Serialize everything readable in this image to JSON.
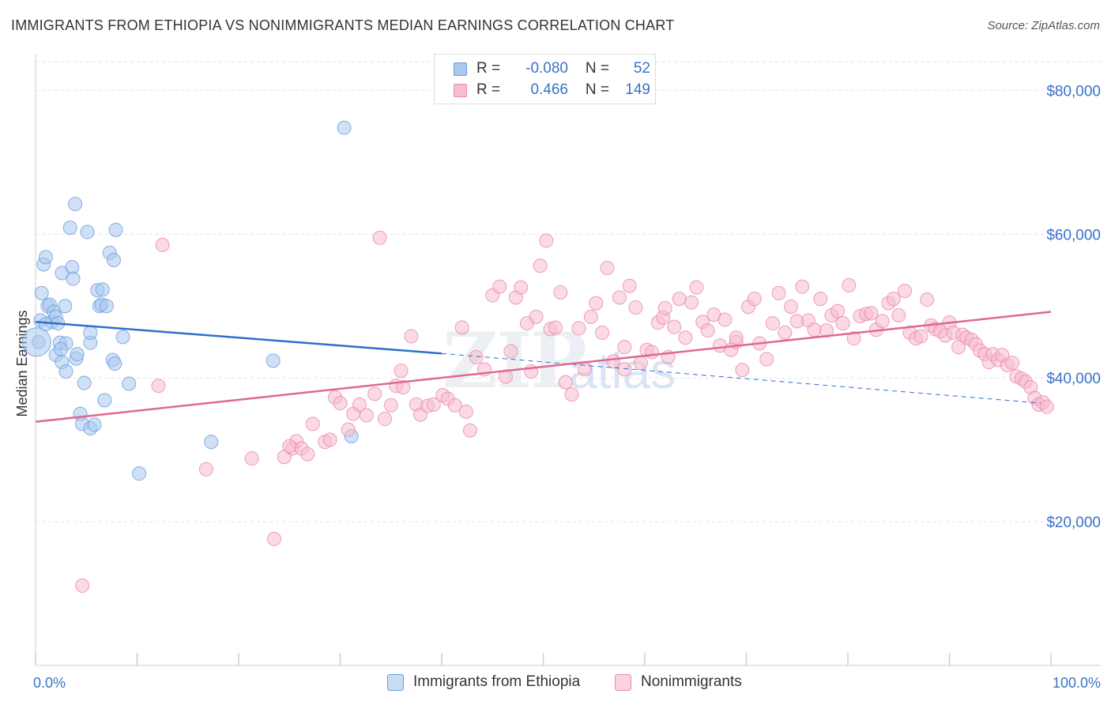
{
  "header": {
    "title": "IMMIGRANTS FROM ETHIOPIA VS NONIMMIGRANTS MEDIAN EARNINGS CORRELATION CHART",
    "source": "Source: ZipAtlas.com"
  },
  "watermark": {
    "part1": "ZIP",
    "part2": "atlas"
  },
  "legend": {
    "rows": [
      {
        "r_label": "R =",
        "r_value": "-0.080",
        "n_label": "N =",
        "n_value": "52",
        "color": "#aac8f0",
        "stroke": "#6b9bd8"
      },
      {
        "r_label": "R =",
        "r_value": "0.466",
        "n_label": "N =",
        "n_value": "149",
        "color": "#f8bcd0",
        "stroke": "#e88aa8"
      }
    ]
  },
  "bottom_legend": {
    "items": [
      {
        "label": "Immigrants from Ethiopia",
        "color": "#c8dcf6",
        "stroke": "#6b9bd8"
      },
      {
        "label": "Nonimmigrants",
        "color": "#fbd3e0",
        "stroke": "#e88aa8"
      }
    ]
  },
  "chart_data": {
    "type": "scatter",
    "title": "IMMIGRANTS FROM ETHIOPIA VS NONIMMIGRANTS MEDIAN EARNINGS CORRELATION CHART",
    "xlabel": "",
    "ylabel": "Median Earnings",
    "xlim": [
      0,
      100
    ],
    "ylim": [
      0,
      84000
    ],
    "x_tick_labels": [
      "0.0%",
      "100.0%"
    ],
    "y_ticks": [
      20000,
      40000,
      60000,
      80000
    ],
    "y_tick_labels": [
      "$20,000",
      "$40,000",
      "$60,000",
      "$80,000"
    ],
    "grid": true,
    "legend_position": "top-center",
    "series": [
      {
        "name": "Immigrants from Ethiopia",
        "color": "#6b9bd8",
        "fill": "#aac8f0",
        "trend": {
          "x0": 0,
          "y0": 47800,
          "x1": 40,
          "y1": 43400,
          "dashed_x1": 99,
          "dashed_y1": 36500,
          "line_color": "#2f6fc9"
        },
        "points": [
          [
            0.3,
            45000
          ],
          [
            0.5,
            48000
          ],
          [
            0.6,
            51800
          ],
          [
            0.8,
            55800
          ],
          [
            1.0,
            56800
          ],
          [
            1.2,
            50000
          ],
          [
            1.4,
            50200
          ],
          [
            1.6,
            47800
          ],
          [
            1.8,
            49200
          ],
          [
            2.0,
            48500
          ],
          [
            2.0,
            43200
          ],
          [
            2.2,
            47600
          ],
          [
            2.4,
            44900
          ],
          [
            2.6,
            54600
          ],
          [
            2.6,
            42200
          ],
          [
            2.9,
            50000
          ],
          [
            3.0,
            44800
          ],
          [
            3.0,
            40900
          ],
          [
            3.4,
            60900
          ],
          [
            3.6,
            55400
          ],
          [
            3.7,
            53800
          ],
          [
            3.9,
            64200
          ],
          [
            4.0,
            42700
          ],
          [
            4.1,
            43300
          ],
          [
            4.4,
            35000
          ],
          [
            4.6,
            33600
          ],
          [
            4.8,
            39300
          ],
          [
            5.1,
            60300
          ],
          [
            5.4,
            44900
          ],
          [
            5.4,
            46300
          ],
          [
            5.4,
            33000
          ],
          [
            5.8,
            33500
          ],
          [
            6.1,
            52200
          ],
          [
            6.3,
            50000
          ],
          [
            6.5,
            50200
          ],
          [
            6.6,
            52300
          ],
          [
            6.8,
            36900
          ],
          [
            7.0,
            50000
          ],
          [
            7.3,
            57400
          ],
          [
            7.6,
            42500
          ],
          [
            7.7,
            56400
          ],
          [
            7.8,
            42000
          ],
          [
            7.9,
            60600
          ],
          [
            8.6,
            45700
          ],
          [
            9.2,
            39200
          ],
          [
            10.2,
            26700
          ],
          [
            17.3,
            31100
          ],
          [
            23.4,
            42400
          ],
          [
            30.4,
            74800
          ],
          [
            31.1,
            31900
          ],
          [
            2.5,
            44000
          ],
          [
            1.0,
            47500
          ]
        ]
      },
      {
        "name": "Nonimmigrants",
        "color": "#e88aa8",
        "fill": "#f8bcd0",
        "trend": {
          "x0": 0,
          "y0": 33900,
          "x1": 100,
          "y1": 49200,
          "line_color": "#e06890"
        },
        "points": [
          [
            4.6,
            11100
          ],
          [
            12.5,
            58500
          ],
          [
            16.8,
            27300
          ],
          [
            21.3,
            28800
          ],
          [
            23.5,
            17600
          ],
          [
            24.5,
            29000
          ],
          [
            25.3,
            30200
          ],
          [
            25.7,
            31200
          ],
          [
            26.2,
            30200
          ],
          [
            26.8,
            29400
          ],
          [
            27.3,
            33600
          ],
          [
            28.5,
            31100
          ],
          [
            29.0,
            31400
          ],
          [
            29.5,
            37300
          ],
          [
            30.0,
            36500
          ],
          [
            30.8,
            32800
          ],
          [
            31.3,
            35000
          ],
          [
            31.9,
            36300
          ],
          [
            32.6,
            34800
          ],
          [
            33.4,
            37800
          ],
          [
            33.9,
            59500
          ],
          [
            34.4,
            34300
          ],
          [
            35.0,
            36200
          ],
          [
            35.5,
            38900
          ],
          [
            36.2,
            38700
          ],
          [
            37.0,
            45800
          ],
          [
            37.5,
            36300
          ],
          [
            37.9,
            34900
          ],
          [
            38.6,
            36100
          ],
          [
            39.2,
            36300
          ],
          [
            40.1,
            37600
          ],
          [
            40.6,
            37100
          ],
          [
            41.3,
            36200
          ],
          [
            42.0,
            47000
          ],
          [
            42.4,
            35300
          ],
          [
            42.8,
            32700
          ],
          [
            43.4,
            42900
          ],
          [
            44.2,
            41200
          ],
          [
            45.0,
            51500
          ],
          [
            45.7,
            52700
          ],
          [
            46.3,
            40200
          ],
          [
            46.8,
            43700
          ],
          [
            47.3,
            51200
          ],
          [
            47.8,
            52600
          ],
          [
            48.4,
            47600
          ],
          [
            48.8,
            40900
          ],
          [
            49.3,
            48500
          ],
          [
            49.7,
            55600
          ],
          [
            50.3,
            59100
          ],
          [
            50.7,
            46800
          ],
          [
            51.2,
            47000
          ],
          [
            51.7,
            51900
          ],
          [
            52.2,
            39400
          ],
          [
            52.8,
            37700
          ],
          [
            53.5,
            46900
          ],
          [
            54.1,
            41200
          ],
          [
            54.7,
            48500
          ],
          [
            55.2,
            50400
          ],
          [
            55.8,
            46300
          ],
          [
            56.3,
            55300
          ],
          [
            56.9,
            42300
          ],
          [
            57.5,
            51200
          ],
          [
            58.0,
            44300
          ],
          [
            58.5,
            52800
          ],
          [
            59.1,
            49800
          ],
          [
            59.6,
            42100
          ],
          [
            60.2,
            43900
          ],
          [
            60.7,
            43600
          ],
          [
            61.3,
            47700
          ],
          [
            61.8,
            48400
          ],
          [
            62.3,
            42900
          ],
          [
            62.9,
            47100
          ],
          [
            63.4,
            51000
          ],
          [
            64.0,
            45600
          ],
          [
            64.6,
            50500
          ],
          [
            65.1,
            52600
          ],
          [
            65.7,
            47800
          ],
          [
            66.2,
            46600
          ],
          [
            66.8,
            48800
          ],
          [
            67.4,
            44500
          ],
          [
            67.9,
            48100
          ],
          [
            68.5,
            43900
          ],
          [
            69.0,
            45000
          ],
          [
            69.6,
            41100
          ],
          [
            70.2,
            49900
          ],
          [
            70.8,
            51000
          ],
          [
            71.3,
            44800
          ],
          [
            72.0,
            42600
          ],
          [
            72.6,
            47600
          ],
          [
            73.2,
            51800
          ],
          [
            73.8,
            46300
          ],
          [
            74.4,
            49900
          ],
          [
            75.0,
            47900
          ],
          [
            75.5,
            52700
          ],
          [
            76.1,
            48000
          ],
          [
            76.7,
            46700
          ],
          [
            77.3,
            51000
          ],
          [
            77.9,
            46600
          ],
          [
            78.4,
            48700
          ],
          [
            79.0,
            49300
          ],
          [
            79.5,
            47600
          ],
          [
            80.1,
            52900
          ],
          [
            80.6,
            45500
          ],
          [
            81.2,
            48600
          ],
          [
            81.8,
            48900
          ],
          [
            82.3,
            49000
          ],
          [
            82.8,
            46700
          ],
          [
            83.4,
            47900
          ],
          [
            84.0,
            50400
          ],
          [
            84.5,
            51000
          ],
          [
            85.0,
            48700
          ],
          [
            85.6,
            52100
          ],
          [
            86.1,
            46300
          ],
          [
            86.7,
            45500
          ],
          [
            87.2,
            45800
          ],
          [
            87.8,
            50900
          ],
          [
            88.2,
            47300
          ],
          [
            88.6,
            46800
          ],
          [
            89.1,
            46500
          ],
          [
            89.6,
            45900
          ],
          [
            90.0,
            47700
          ],
          [
            90.4,
            46300
          ],
          [
            90.9,
            44300
          ],
          [
            91.3,
            46000
          ],
          [
            91.7,
            45600
          ],
          [
            92.2,
            45300
          ],
          [
            92.6,
            44700
          ],
          [
            93.0,
            43800
          ],
          [
            93.5,
            43300
          ],
          [
            93.9,
            42200
          ],
          [
            94.3,
            43300
          ],
          [
            94.8,
            42500
          ],
          [
            95.2,
            43200
          ],
          [
            95.7,
            41800
          ],
          [
            96.2,
            42100
          ],
          [
            96.6,
            40200
          ],
          [
            97.1,
            39900
          ],
          [
            97.5,
            39500
          ],
          [
            98.0,
            38700
          ],
          [
            98.4,
            37200
          ],
          [
            98.8,
            36300
          ],
          [
            99.2,
            36600
          ],
          [
            99.6,
            36000
          ],
          [
            12.1,
            38900
          ],
          [
            25.0,
            30500
          ],
          [
            36.0,
            41000
          ],
          [
            58.0,
            41200
          ],
          [
            62.0,
            49700
          ],
          [
            69.0,
            45600
          ]
        ]
      }
    ]
  }
}
